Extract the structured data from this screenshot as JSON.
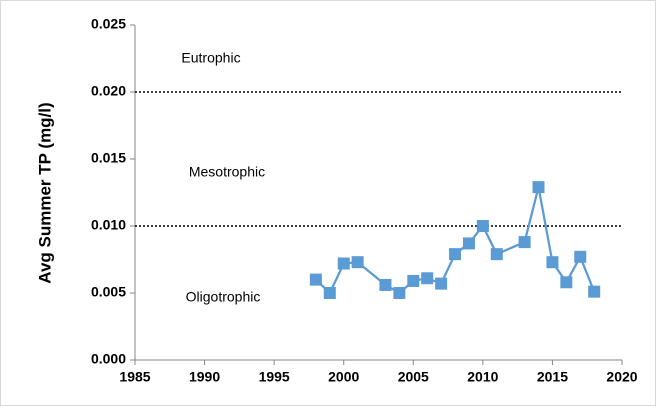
{
  "chart_data": {
    "type": "line",
    "y_label": "Avg Summer TP (mg/l)",
    "x": [
      1998,
      1999,
      2000,
      2001,
      2003,
      2004,
      2005,
      2006,
      2007,
      2008,
      2009,
      2010,
      2011,
      2013,
      2014,
      2015,
      2016,
      2017,
      2018
    ],
    "series": [
      {
        "name": "Avg Summer TP",
        "color": "#5b9bd5",
        "values": [
          0.006,
          0.005,
          0.0072,
          0.0073,
          0.0056,
          0.005,
          0.0059,
          0.0061,
          0.0057,
          0.0079,
          0.0087,
          0.01,
          0.0079,
          0.0088,
          0.0129,
          0.0073,
          0.0058,
          0.0077,
          0.0051
        ]
      }
    ],
    "xlim": [
      1985,
      2020
    ],
    "xticks": [
      1985,
      1990,
      1995,
      2000,
      2005,
      2010,
      2015,
      2020
    ],
    "ylim": [
      0,
      0.025
    ],
    "yticks": [
      {
        "value": 0,
        "label": "0.000"
      },
      0.005,
      {
        "value": 0.01,
        "label": "0.010"
      },
      0.015,
      {
        "value": 0.02,
        "label": "0.020"
      },
      0.025
    ],
    "reference_lines": [
      0.01,
      0.02
    ],
    "annotations": [
      "Eutrophic",
      "Mesotrophic",
      "Oligotrophic"
    ]
  }
}
